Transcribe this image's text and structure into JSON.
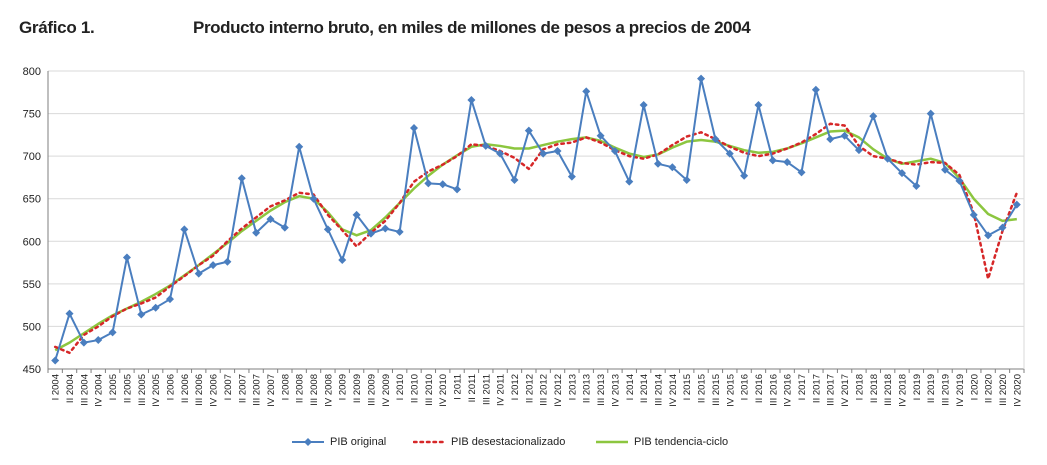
{
  "figure": {
    "label": "Gráfico 1.",
    "title": "Producto interno bruto, en miles de millones de pesos a precios de 2004"
  },
  "colors": {
    "original": "#4a7ebf",
    "desest": "#d62728",
    "tendencia": "#8cc63f",
    "grid": "#d9d9d9",
    "axis": "#7f7f7f"
  },
  "chart_data": {
    "type": "line",
    "title": "Producto interno bruto, en miles de millones de pesos a precios de 2004",
    "xlabel": "",
    "ylabel": "",
    "ylim": [
      450,
      800
    ],
    "yticks": [
      450,
      500,
      550,
      600,
      650,
      700,
      750,
      800
    ],
    "grid": true,
    "legend_position": "bottom",
    "categories": [
      "I 2004",
      "II 2004",
      "III 2004",
      "IV 2004",
      "I 2005",
      "II 2005",
      "III 2005",
      "IV 2005",
      "I 2006",
      "II 2006",
      "III 2006",
      "IV 2006",
      "I 2007",
      "II 2007",
      "III 2007",
      "IV 2007",
      "I 2008",
      "II 2008",
      "III 2008",
      "IV 2008",
      "I 2009",
      "II 2009",
      "III 2009",
      "IV 2009",
      "I 2010",
      "II 2010",
      "III 2010",
      "IV 2010",
      "I 2011",
      "II 2011",
      "III 2011",
      "IV 2011",
      "I 2012",
      "II 2012",
      "III 2012",
      "IV 2012",
      "I 2013",
      "II 2013",
      "III 2013",
      "IV 2013",
      "I 2014",
      "II 2014",
      "III 2014",
      "IV 2014",
      "I 2015",
      "II 2015",
      "III 2015",
      "IV 2015",
      "I 2016",
      "II 2016",
      "III 2016",
      "IV 2016",
      "I 2017",
      "II 2017",
      "III 2017",
      "IV 2017",
      "I 2018",
      "II 2018",
      "III 2018",
      "IV 2018",
      "I 2019",
      "II 2019",
      "III 2019",
      "IV 2019",
      "I 2020",
      "II 2020",
      "III 2020",
      "IV 2020"
    ],
    "series": [
      {
        "name": "PIB original",
        "style": "line-diamond",
        "values": [
          460,
          515,
          481,
          484,
          493,
          581,
          514,
          522,
          532,
          614,
          562,
          572,
          576,
          674,
          610,
          626,
          616,
          711,
          650,
          614,
          578,
          631,
          609,
          615,
          611,
          733,
          668,
          667,
          661,
          766,
          712,
          703,
          672,
          730,
          703,
          706,
          676,
          776,
          724,
          706,
          670,
          760,
          691,
          687,
          672,
          791,
          720,
          703,
          677,
          760,
          695,
          693,
          681,
          778,
          720,
          724,
          707,
          747,
          697,
          680,
          665,
          750,
          684,
          671,
          631,
          607,
          616,
          643
        ]
      },
      {
        "name": "PIB desestacionalizado",
        "style": "dotted",
        "values": [
          476,
          469,
          490,
          500,
          512,
          521,
          527,
          534,
          547,
          559,
          572,
          583,
          600,
          615,
          628,
          641,
          648,
          657,
          655,
          631,
          613,
          594,
          610,
          624,
          645,
          670,
          682,
          690,
          700,
          714,
          712,
          706,
          698,
          685,
          708,
          714,
          716,
          722,
          716,
          707,
          700,
          697,
          702,
          713,
          723,
          728,
          720,
          711,
          704,
          700,
          703,
          709,
          716,
          726,
          738,
          736,
          712,
          700,
          697,
          692,
          690,
          693,
          692,
          678,
          633,
          556,
          612,
          657
        ]
      },
      {
        "name": "PIB tendencia-ciclo",
        "style": "solid",
        "values": [
          472,
          481,
          492,
          503,
          513,
          521,
          529,
          538,
          548,
          560,
          572,
          585,
          598,
          612,
          624,
          636,
          646,
          653,
          650,
          634,
          614,
          607,
          613,
          628,
          645,
          662,
          677,
          690,
          701,
          711,
          714,
          712,
          709,
          709,
          713,
          717,
          720,
          722,
          718,
          710,
          703,
          699,
          702,
          710,
          717,
          719,
          717,
          712,
          707,
          704,
          705,
          709,
          715,
          722,
          729,
          730,
          722,
          708,
          697,
          691,
          694,
          697,
          692,
          674,
          650,
          632,
          624,
          626
        ]
      }
    ]
  }
}
